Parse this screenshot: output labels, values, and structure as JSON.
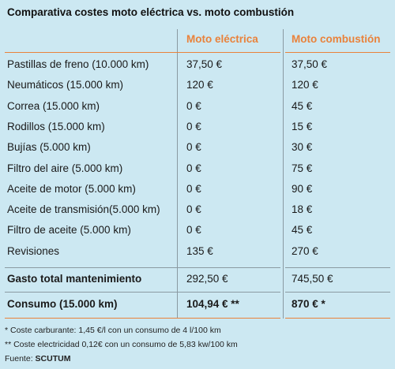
{
  "title": "Comparativa costes moto eléctrica vs. moto combustión",
  "columns": [
    "Moto eléctrica",
    "Moto combustión"
  ],
  "rows": [
    {
      "label": "Pastillas de freno (10.000 km)",
      "electric": "37,50 €",
      "combustion": "37,50 €"
    },
    {
      "label": "Neumáticos (15.000 km)",
      "electric": "120 €",
      "combustion": "120 €"
    },
    {
      "label": "Correa (15.000 km)",
      "electric": "0 €",
      "combustion": "45 €"
    },
    {
      "label": "Rodillos (15.000 km)",
      "electric": "0 €",
      "combustion": "15 €"
    },
    {
      "label": "Bujías (5.000 km)",
      "electric": "0 €",
      "combustion": "30 €"
    },
    {
      "label": "Filtro del aire (5.000 km)",
      "electric": "0 €",
      "combustion": "75 €"
    },
    {
      "label": "Aceite de motor (5.000 km)",
      "electric": "0 €",
      "combustion": "90 €"
    },
    {
      "label": "Aceite de transmisión(5.000 km)",
      "electric": "0 €",
      "combustion": "18 €"
    },
    {
      "label": "Filtro de aceite (5.000 km)",
      "electric": "0 €",
      "combustion": "45 €"
    },
    {
      "label": "Revisiones",
      "electric": "135 €",
      "combustion": "270 €"
    }
  ],
  "total": {
    "label": "Gasto total mantenimiento",
    "electric": "292,50 €",
    "combustion": "745,50 €"
  },
  "consumption": {
    "label": "Consumo (15.000 km)",
    "electric": "104,94 € **",
    "combustion": "870 € *"
  },
  "footnotes": [
    "* Coste carburante: 1,45 €/l con un consumo de 4 l/100 km",
    "** Coste electricidad 0,12€ con un consumo de 5,83 kw/100 km"
  ],
  "source": {
    "prefix": "Fuente: ",
    "name": "SCUTUM"
  },
  "colors": {
    "background": "#cce8f2",
    "accent": "#e9823b",
    "rule": "#8a9aa2"
  }
}
